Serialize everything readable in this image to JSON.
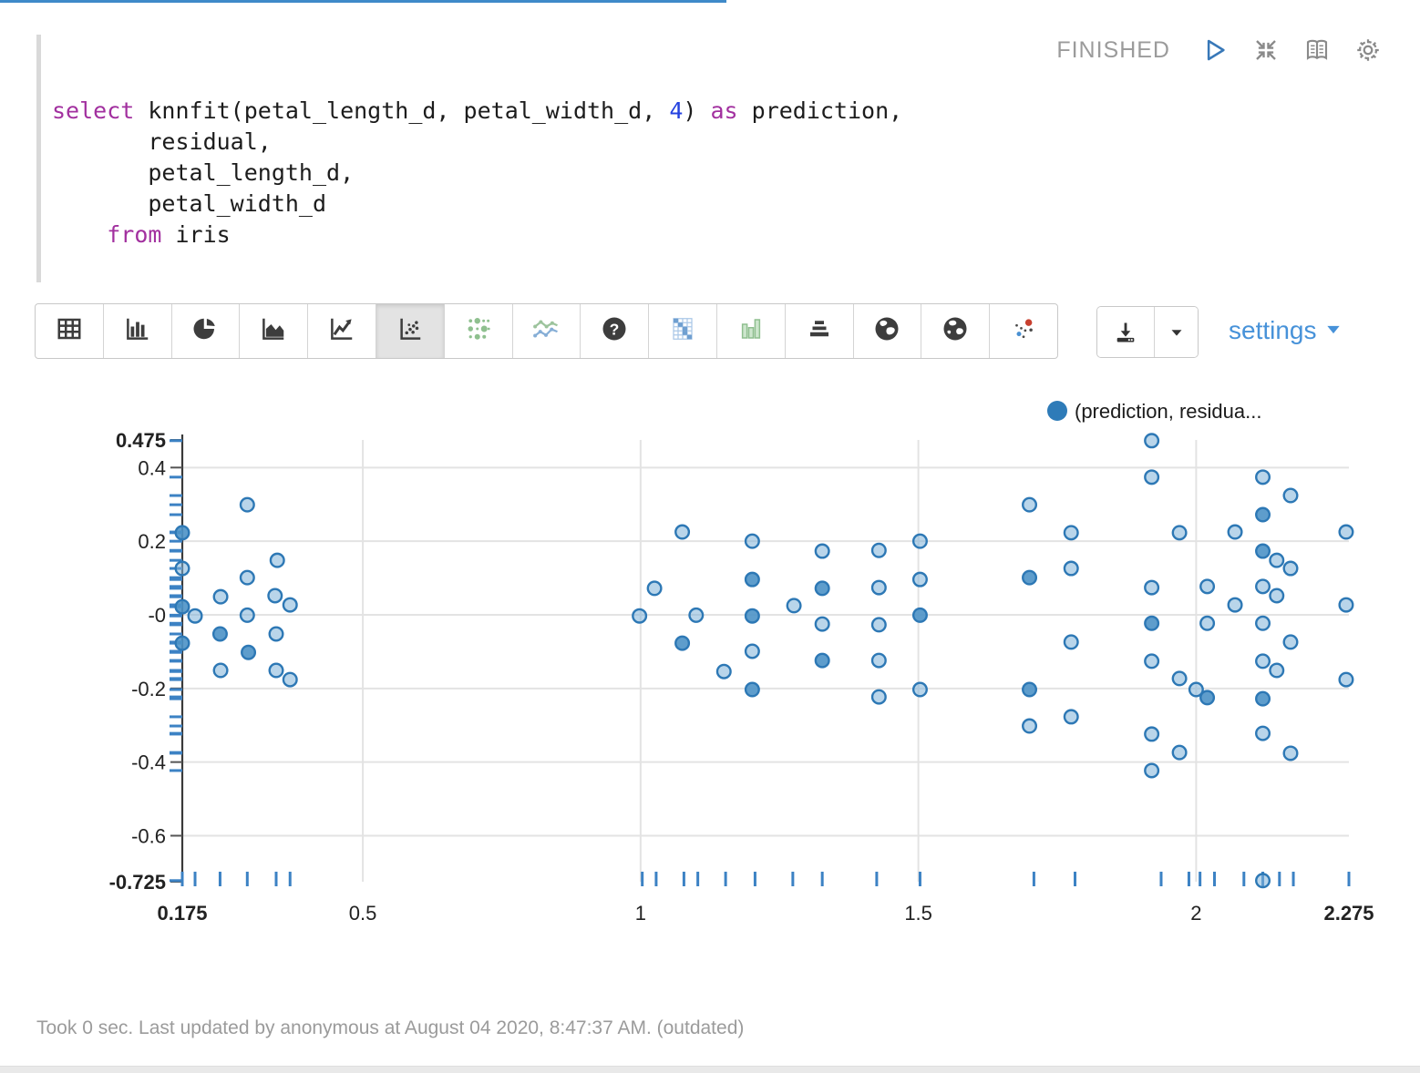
{
  "paragraph": {
    "status": "FINISHED"
  },
  "header_icons": [
    "run-icon",
    "collapse-icon",
    "show-editor-icon",
    "gear-icon"
  ],
  "editor": {
    "lines": [
      [
        {
          "t": "select ",
          "c": "kw"
        },
        {
          "t": "knnfit(petal_length_d, petal_width_d, ",
          "c": "pl"
        },
        {
          "t": "4",
          "c": "num"
        },
        {
          "t": ") ",
          "c": "pl"
        },
        {
          "t": "as",
          "c": "kw"
        },
        {
          "t": " prediction,",
          "c": "pl"
        }
      ],
      [
        {
          "t": "       residual,",
          "c": "pl"
        }
      ],
      [
        {
          "t": "       petal_length_d,",
          "c": "pl"
        }
      ],
      [
        {
          "t": "       petal_width_d",
          "c": "pl"
        }
      ],
      [
        {
          "t": "    ",
          "c": "pl"
        },
        {
          "t": "from",
          "c": "kw"
        },
        {
          "t": " iris",
          "c": "pl"
        }
      ]
    ]
  },
  "toolbar": {
    "buttons": [
      {
        "name": "table"
      },
      {
        "name": "bar-chart"
      },
      {
        "name": "pie-chart"
      },
      {
        "name": "area-chart"
      },
      {
        "name": "line-chart"
      },
      {
        "name": "scatter-chart",
        "selected": true
      },
      {
        "name": "bubble-matrix"
      },
      {
        "name": "spline-chart"
      },
      {
        "name": "help"
      },
      {
        "name": "correlation-matrix"
      },
      {
        "name": "column-range"
      },
      {
        "name": "pyramid-chart"
      },
      {
        "name": "globe-map"
      },
      {
        "name": "globe-map-alt"
      },
      {
        "name": "ml-scatter"
      }
    ],
    "settings_label": "settings"
  },
  "chart_data": {
    "type": "scatter",
    "title": "",
    "xlabel": "",
    "ylabel": "",
    "legend": [
      {
        "label": "(prediction, residua...",
        "color": "#2e7bb8"
      }
    ],
    "xlim": [
      0.175,
      2.275
    ],
    "ylim": [
      -0.725,
      0.475
    ],
    "x_ticks": [
      {
        "v": 0.175,
        "l": "0.175",
        "b": true
      },
      {
        "v": 0.5,
        "l": "0.5"
      },
      {
        "v": 1,
        "l": "1"
      },
      {
        "v": 1.5,
        "l": "1.5"
      },
      {
        "v": 2,
        "l": "2"
      },
      {
        "v": 2.275,
        "l": "2.275",
        "b": true
      }
    ],
    "y_ticks": [
      {
        "v": 0.475,
        "l": "0.475",
        "b": true
      },
      {
        "v": 0.4,
        "l": "0.4"
      },
      {
        "v": 0.2,
        "l": "0.2"
      },
      {
        "v": 0,
        "l": "-0"
      },
      {
        "v": -0.2,
        "l": "-0.2"
      },
      {
        "v": -0.4,
        "l": "-0.4"
      },
      {
        "v": -0.6,
        "l": "-0.6"
      },
      {
        "v": -0.725,
        "l": "-0.725",
        "b": true
      }
    ],
    "x_grid": [
      0.5,
      1,
      1.5,
      2
    ],
    "y_grid": [
      0.4,
      0.2,
      0,
      -0.2,
      -0.4,
      -0.6
    ],
    "x_rug": [
      0.175,
      0.198,
      0.243,
      0.292,
      0.344,
      0.369,
      1.003,
      1.028,
      1.078,
      1.103,
      1.153,
      1.206,
      1.274,
      1.327,
      1.425,
      1.503,
      1.708,
      1.782,
      1.937,
      1.987,
      2.007,
      2.033,
      2.086,
      2.12,
      2.15,
      2.175,
      2.275
    ],
    "series": [
      {
        "name": "(prediction, residual)",
        "points": [
          [
            0.292,
            0.299,
            0
          ],
          [
            0.175,
            0.223,
            1
          ],
          [
            0.346,
            0.148,
            0
          ],
          [
            0.175,
            0.126,
            0
          ],
          [
            0.292,
            0.101,
            0
          ],
          [
            0.244,
            0.049,
            0
          ],
          [
            0.342,
            0.052,
            0
          ],
          [
            0.369,
            0.027,
            0
          ],
          [
            0.175,
            0.022,
            1
          ],
          [
            0.198,
            -0.003,
            0
          ],
          [
            0.292,
            -0.001,
            0
          ],
          [
            0.243,
            -0.052,
            1
          ],
          [
            0.344,
            -0.052,
            0
          ],
          [
            0.175,
            -0.077,
            1
          ],
          [
            0.294,
            -0.102,
            1
          ],
          [
            0.244,
            -0.151,
            0
          ],
          [
            0.344,
            -0.151,
            0
          ],
          [
            0.369,
            -0.176,
            0
          ],
          [
            1.075,
            0.225,
            0
          ],
          [
            1.201,
            0.2,
            0
          ],
          [
            1.327,
            0.173,
            0
          ],
          [
            1.429,
            0.175,
            0
          ],
          [
            1.503,
            0.2,
            0
          ],
          [
            1.201,
            0.096,
            1
          ],
          [
            1.025,
            0.072,
            0
          ],
          [
            1.327,
            0.072,
            1
          ],
          [
            1.429,
            0.074,
            0
          ],
          [
            1.503,
            0.096,
            0
          ],
          [
            1.276,
            0.025,
            0
          ],
          [
            0.998,
            -0.003,
            0
          ],
          [
            1.1,
            -0.001,
            0
          ],
          [
            1.201,
            -0.003,
            1
          ],
          [
            1.327,
            -0.025,
            0
          ],
          [
            1.429,
            -0.027,
            0
          ],
          [
            1.503,
            -0.001,
            1
          ],
          [
            1.075,
            -0.077,
            1
          ],
          [
            1.201,
            -0.099,
            0
          ],
          [
            1.327,
            -0.124,
            1
          ],
          [
            1.429,
            -0.124,
            0
          ],
          [
            1.15,
            -0.154,
            0
          ],
          [
            1.201,
            -0.203,
            1
          ],
          [
            1.429,
            -0.223,
            0
          ],
          [
            1.503,
            -0.203,
            0
          ],
          [
            1.92,
            0.473,
            0
          ],
          [
            1.92,
            0.374,
            0
          ],
          [
            2.12,
            0.374,
            0
          ],
          [
            2.17,
            0.324,
            0
          ],
          [
            1.7,
            0.299,
            0
          ],
          [
            2.12,
            0.272,
            1
          ],
          [
            1.775,
            0.223,
            0
          ],
          [
            1.97,
            0.223,
            0
          ],
          [
            2.07,
            0.225,
            0
          ],
          [
            2.27,
            0.225,
            0
          ],
          [
            2.12,
            0.173,
            1
          ],
          [
            2.145,
            0.148,
            0
          ],
          [
            2.17,
            0.126,
            0
          ],
          [
            1.775,
            0.126,
            0
          ],
          [
            1.7,
            0.101,
            1
          ],
          [
            1.92,
            0.074,
            0
          ],
          [
            2.02,
            0.077,
            0
          ],
          [
            2.12,
            0.077,
            0
          ],
          [
            2.145,
            0.052,
            0
          ],
          [
            2.07,
            0.027,
            0
          ],
          [
            2.27,
            0.027,
            0
          ],
          [
            1.92,
            -0.023,
            1
          ],
          [
            2.02,
            -0.023,
            0
          ],
          [
            2.12,
            -0.023,
            0
          ],
          [
            1.775,
            -0.074,
            0
          ],
          [
            2.17,
            -0.074,
            0
          ],
          [
            1.92,
            -0.126,
            0
          ],
          [
            2.12,
            -0.126,
            0
          ],
          [
            2.145,
            -0.151,
            0
          ],
          [
            1.97,
            -0.173,
            0
          ],
          [
            2.27,
            -0.176,
            0
          ],
          [
            1.7,
            -0.203,
            1
          ],
          [
            2.0,
            -0.203,
            0
          ],
          [
            2.02,
            -0.225,
            1
          ],
          [
            2.12,
            -0.228,
            1
          ],
          [
            1.775,
            -0.277,
            0
          ],
          [
            1.7,
            -0.302,
            0
          ],
          [
            1.92,
            -0.324,
            0
          ],
          [
            2.12,
            -0.322,
            0
          ],
          [
            1.97,
            -0.374,
            0
          ],
          [
            2.17,
            -0.376,
            0
          ],
          [
            1.92,
            -0.423,
            0
          ],
          [
            2.12,
            -0.722,
            0
          ]
        ]
      }
    ],
    "colors": {
      "point_fill": "#7fb2d9",
      "point_stroke": "#2d78b5",
      "rug": "#3c82c4",
      "grid": "#e3e3e3",
      "axis": "#3a3a3a"
    }
  },
  "footer": {
    "status_text": "Took 0 sec. Last updated by anonymous at August 04 2020, 8:47:37 AM. (outdated)"
  }
}
